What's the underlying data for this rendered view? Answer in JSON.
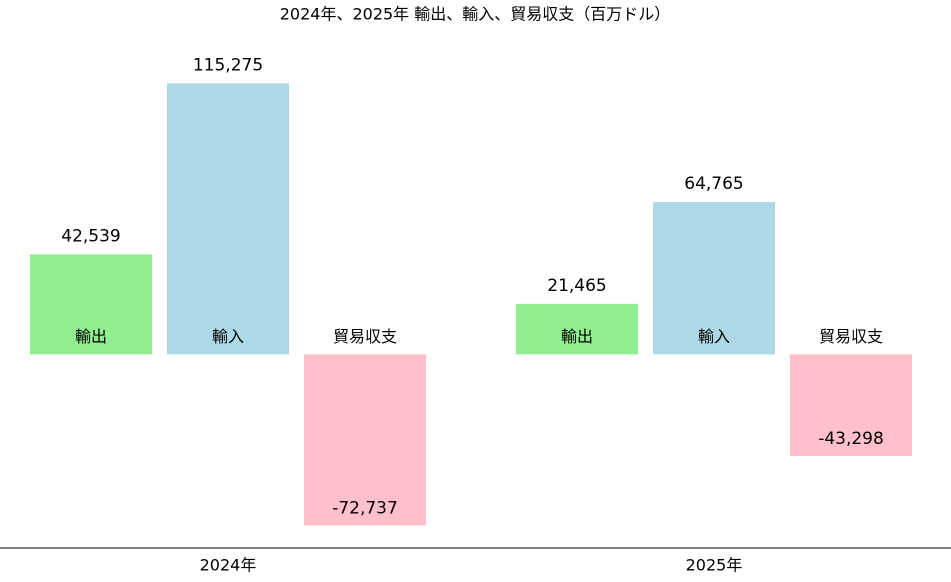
{
  "chart_data": {
    "type": "bar",
    "title": "2024年、2025年 輸出、輸入、貿易収支（百万ドル）",
    "categories": [
      "2024年",
      "2025年"
    ],
    "series": [
      {
        "name": "輸出",
        "color": "#90ee90",
        "values": [
          42539,
          21465
        ],
        "value_labels": [
          "42,539",
          "21,465"
        ]
      },
      {
        "name": "輸入",
        "color": "#add8e6",
        "values": [
          115275,
          64765
        ],
        "value_labels": [
          "115,275",
          "64,765"
        ]
      },
      {
        "name": "貿易収支",
        "color": "#ffc0cb",
        "values": [
          -72737,
          -43298
        ],
        "value_labels": [
          "-72,737",
          "-43,298"
        ]
      }
    ],
    "ylim": [
      -82400,
      138000
    ]
  }
}
